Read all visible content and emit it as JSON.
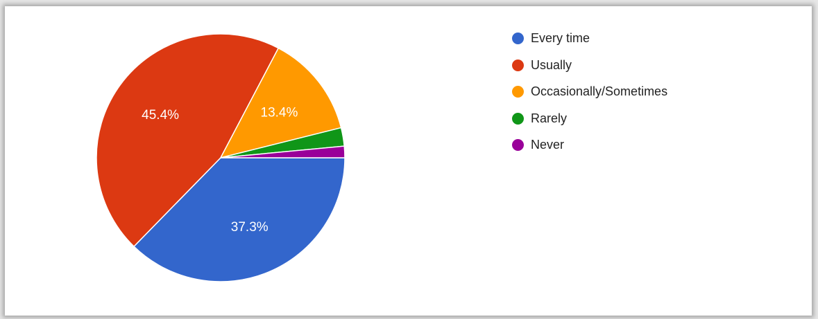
{
  "chart_data": {
    "type": "pie",
    "title": "",
    "legend_position": "top-right",
    "slices": [
      {
        "name": "Every time",
        "value": 37.3,
        "label": "37.3%",
        "color": "#3366cc"
      },
      {
        "name": "Usually",
        "value": 45.4,
        "label": "45.4%",
        "color": "#dc3912"
      },
      {
        "name": "Occasionally/Sometimes",
        "value": 13.4,
        "label": "13.4%",
        "color": "#ff9900"
      },
      {
        "name": "Rarely",
        "value": 2.4,
        "label": "",
        "color": "#109618"
      },
      {
        "name": "Never",
        "value": 1.5,
        "label": "",
        "color": "#990099"
      }
    ]
  }
}
